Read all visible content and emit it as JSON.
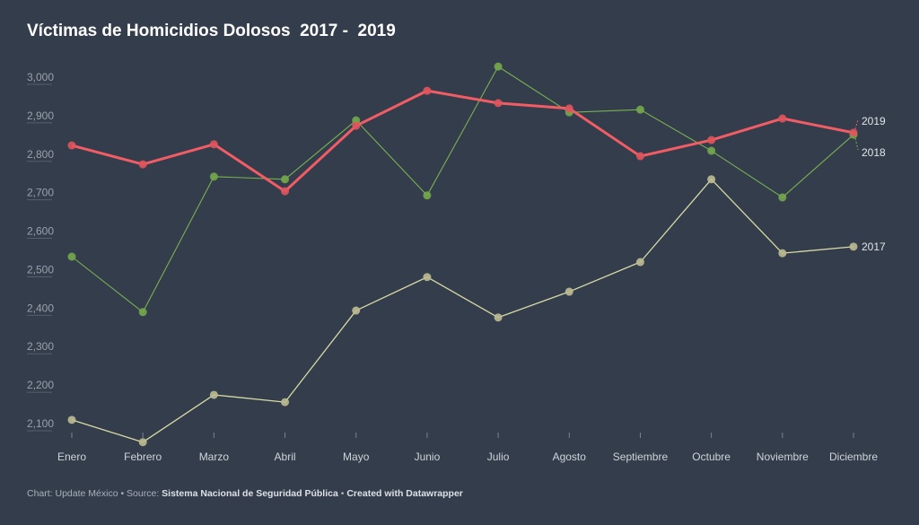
{
  "chart_data": {
    "type": "line",
    "title": "Víctimas de Homicidios Dolosos  2017 -  2019",
    "xlabel": "",
    "ylabel": "",
    "ylim": [
      2050,
      3050
    ],
    "yticks": [
      2100,
      2200,
      2300,
      2400,
      2500,
      2600,
      2700,
      2800,
      2900,
      3000
    ],
    "ytick_labels": [
      "2,100",
      "2,200",
      "2,300",
      "2,400",
      "2,500",
      "2,600",
      "2,700",
      "2,800",
      "2,900",
      "3,000"
    ],
    "categories": [
      "Enero",
      "Febrero",
      "Marzo",
      "Abril",
      "Mayo",
      "Junio",
      "Julio",
      "Agosto",
      "Septiembre",
      "Octubre",
      "Noviembre",
      "Diciembre"
    ],
    "grid": false,
    "legend": "direct labels at right end",
    "series": [
      {
        "name": "2017",
        "color": "#d9d9a3",
        "values": [
          2119,
          2061,
          2184,
          2165,
          2403,
          2490,
          2385,
          2452,
          2529,
          2744,
          2552,
          2569
        ]
      },
      {
        "name": "2018",
        "color": "#7ab050",
        "values": [
          2543,
          2399,
          2751,
          2744,
          2897,
          2702,
          3037,
          2918,
          2925,
          2818,
          2697,
          2860
        ]
      },
      {
        "name": "2019",
        "color": "#f25c64",
        "values": [
          2832,
          2783,
          2835,
          2713,
          2883,
          2974,
          2942,
          2928,
          2804,
          2846,
          2902,
          2865
        ]
      }
    ]
  },
  "footer": {
    "chart_prefix": "Chart: Update México • Source: ",
    "source": "Sistema Nacional de Seguridad Pública",
    "separator": " • ",
    "created": "Created with Datawrapper"
  }
}
